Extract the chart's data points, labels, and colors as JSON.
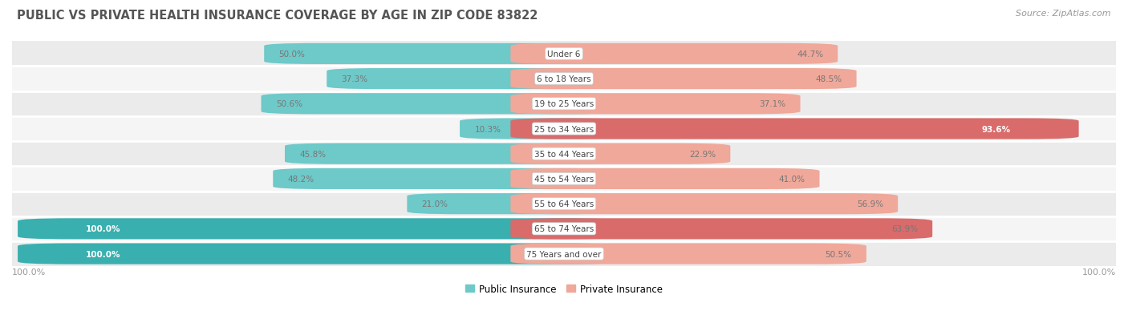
{
  "title": "PUBLIC VS PRIVATE HEALTH INSURANCE COVERAGE BY AGE IN ZIP CODE 83822",
  "source": "Source: ZipAtlas.com",
  "categories": [
    "Under 6",
    "6 to 18 Years",
    "19 to 25 Years",
    "25 to 34 Years",
    "35 to 44 Years",
    "45 to 54 Years",
    "55 to 64 Years",
    "65 to 74 Years",
    "75 Years and over"
  ],
  "public_values": [
    50.0,
    37.3,
    50.6,
    10.3,
    45.8,
    48.2,
    21.0,
    100.0,
    100.0
  ],
  "private_values": [
    44.7,
    48.5,
    37.1,
    93.6,
    22.9,
    41.0,
    56.9,
    63.9,
    50.5
  ],
  "public_color_strong": "#3AAFAF",
  "public_color_light": "#6EC9C9",
  "private_color_strong": "#D96B6B",
  "private_color_light": "#EFA89A",
  "row_bg_even": "#EBEBEB",
  "row_bg_odd": "#F5F5F5",
  "row_separator": "#FFFFFF",
  "title_color": "#555555",
  "source_color": "#999999",
  "value_color_dark": "#777777",
  "value_color_white": "#FFFFFF",
  "bar_height": 0.62,
  "figsize": [
    14.06,
    4.14
  ],
  "dpi": 100,
  "max_value": 100.0,
  "legend_labels": [
    "Public Insurance",
    "Private Insurance"
  ],
  "axis_label_left": "100.0%",
  "axis_label_right": "100.0%",
  "center_label_bg": "#FFFFFF",
  "strong_threshold": 60.0
}
